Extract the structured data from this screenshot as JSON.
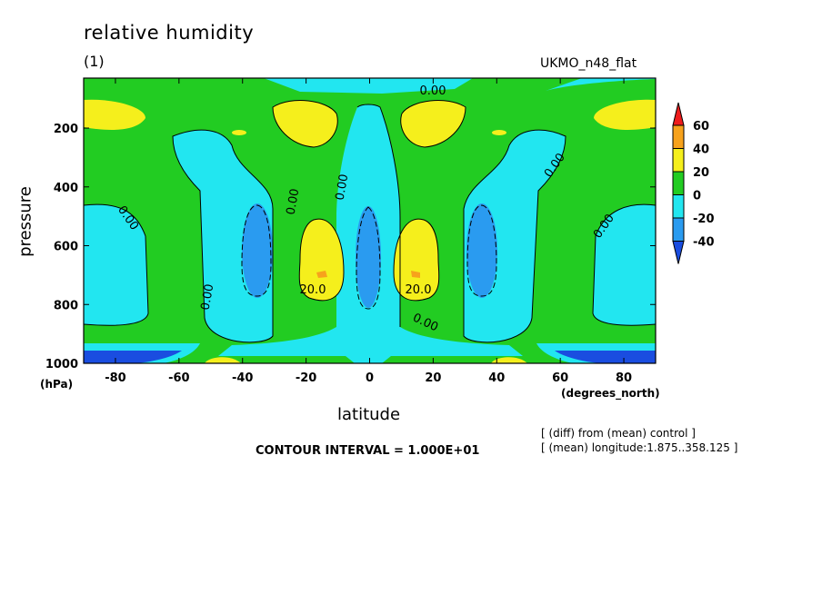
{
  "chart_data": {
    "type": "heatmap",
    "title": "relative humidity",
    "subtitle": "(1)",
    "model": "UKMO_n48_flat",
    "xlabel": "latitude",
    "xunits": "(degrees_north)",
    "ylabel": "pressure",
    "yunits": "(hPa)",
    "x_ticks": [
      "-80",
      "-60",
      "-40",
      "-20",
      "0",
      "20",
      "40",
      "60",
      "80"
    ],
    "y_ticks": [
      "200",
      "400",
      "600",
      "800",
      "1000"
    ],
    "xlim": [
      -90,
      90
    ],
    "ylim": [
      1000,
      30
    ],
    "contour_interval_text": "CONTOUR INTERVAL = 1.000E+01",
    "notes": [
      "[ (diff) from (mean) control ]",
      "[ (mean) longitude:1.875..358.125 ]"
    ],
    "colorbar": {
      "levels": [
        "60",
        "40",
        "20",
        "0",
        "-20",
        "-40"
      ],
      "colors": [
        "#ee1c1c",
        "#f7a21c",
        "#f5ef1c",
        "#22cc22",
        "#22e6f0",
        "#2a9bf0",
        "#1a4de0"
      ]
    },
    "contour_labels": [
      "0.00",
      "0.00",
      "0.00",
      "0.00",
      "0.00",
      "0.00",
      "0.00",
      "20.0",
      "20.0",
      "0.00"
    ],
    "features": [
      {
        "lat": -15,
        "p": 700,
        "value": 20,
        "label": "positive max SH subtropics"
      },
      {
        "lat": 15,
        "p": 700,
        "value": 20,
        "label": "positive max NH subtropics"
      },
      {
        "lat": -35,
        "p": 600,
        "value": -20,
        "label": "negative min SH midlat"
      },
      {
        "lat": 35,
        "p": 600,
        "value": -20,
        "label": "negative min NH midlat"
      },
      {
        "lat": 0,
        "p": 600,
        "value": -20,
        "label": "equatorial minimum"
      },
      {
        "lat": -85,
        "p": 150,
        "value": 30,
        "label": "SH high-lat upper max"
      },
      {
        "lat": 85,
        "p": 150,
        "value": 30,
        "label": "NH high-lat upper max"
      }
    ]
  }
}
